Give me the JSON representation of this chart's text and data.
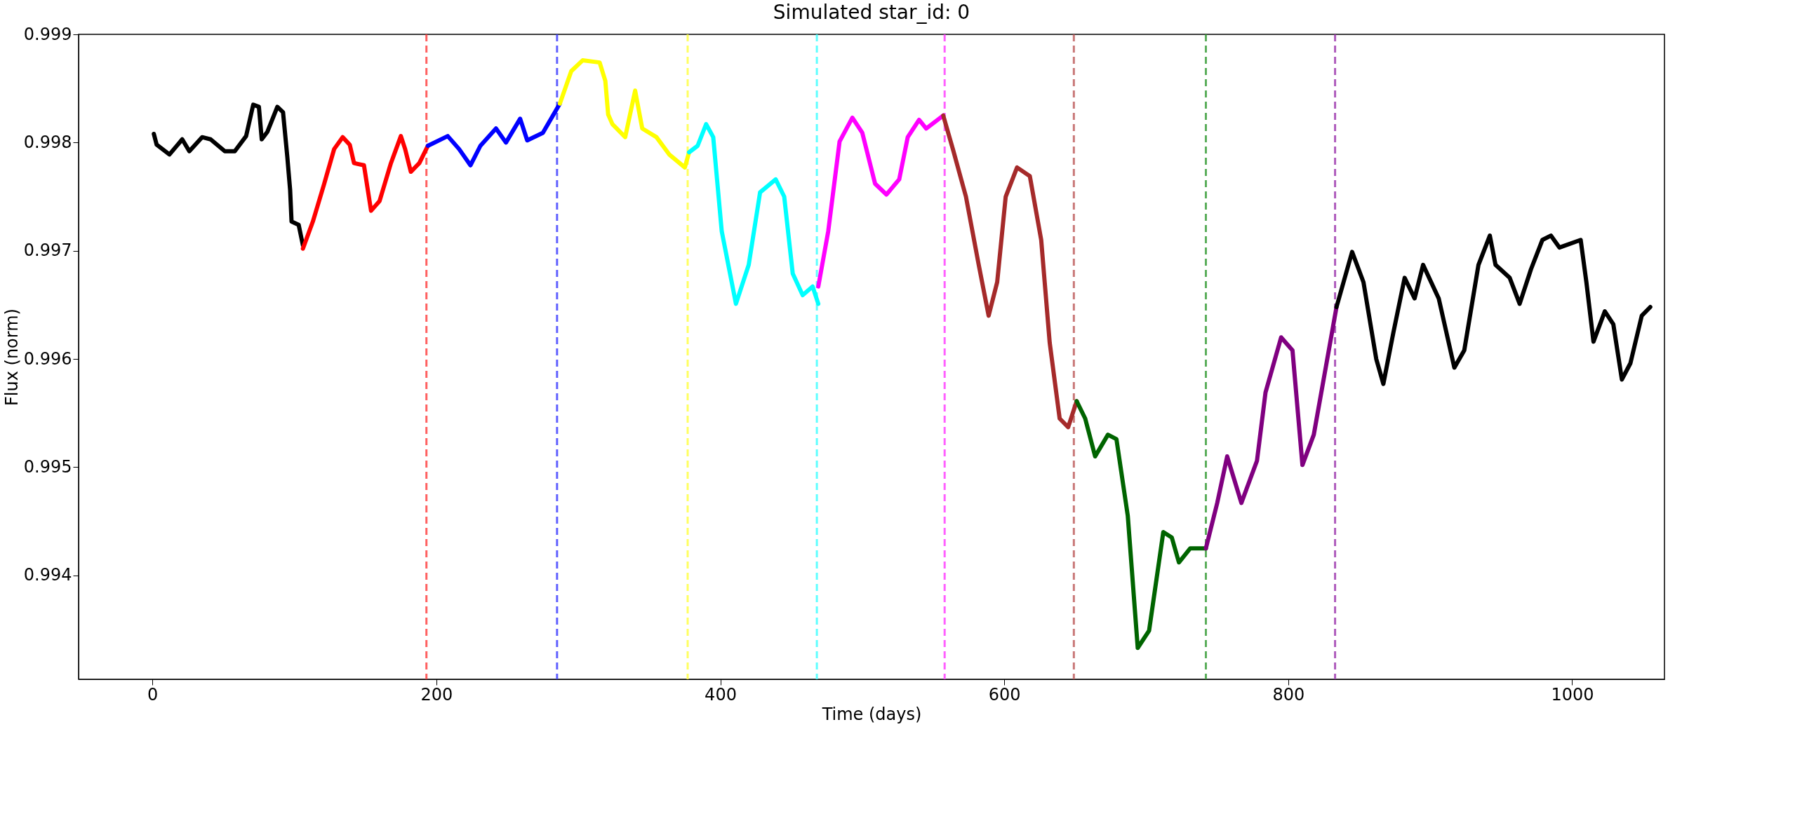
{
  "chart_data": {
    "type": "line",
    "title": "Simulated star_id: 0",
    "xlabel": "Time (days)",
    "ylabel": "Flux (norm)",
    "xlim": [
      -52,
      1065
    ],
    "ylim": [
      0.99304,
      0.999
    ],
    "xticks": [
      0,
      200,
      400,
      600,
      800,
      1000
    ],
    "yticks": [
      0.994,
      0.995,
      0.996,
      0.997,
      0.998,
      0.999
    ],
    "grid": false,
    "legend": false,
    "marker": "none",
    "line_style": "solid",
    "series": [
      {
        "color": "#000000",
        "x": [
          1,
          3,
          12,
          21,
          26,
          35,
          41,
          51,
          58,
          66,
          71,
          75,
          77,
          81,
          88,
          92,
          95,
          97,
          98,
          103,
          106
        ],
        "values": [
          0.99808,
          0.99798,
          0.99789,
          0.99803,
          0.99792,
          0.99805,
          0.99803,
          0.99792,
          0.99792,
          0.99806,
          0.99835,
          0.99833,
          0.99803,
          0.9981,
          0.99833,
          0.99828,
          0.99787,
          0.99756,
          0.99727,
          0.99724,
          0.99705
        ]
      },
      {
        "color": "#ff0000",
        "x": [
          106,
          113,
          121,
          128,
          134,
          139,
          142,
          149,
          154,
          160,
          168,
          175,
          178,
          182,
          188,
          194
        ],
        "values": [
          0.99702,
          0.99727,
          0.99762,
          0.99794,
          0.99805,
          0.99798,
          0.99781,
          0.99779,
          0.99737,
          0.99746,
          0.99781,
          0.99806,
          0.99794,
          0.99773,
          0.99781,
          0.99797
        ]
      },
      {
        "color": "#0000ff",
        "x": [
          194,
          208,
          216,
          224,
          231,
          242,
          249,
          259,
          264,
          275,
          287
        ],
        "values": [
          0.99797,
          0.99806,
          0.99794,
          0.99779,
          0.99797,
          0.99813,
          0.998,
          0.99822,
          0.99802,
          0.99809,
          0.99836
        ]
      },
      {
        "color": "#ffff00",
        "x": [
          287,
          295,
          303,
          315,
          319,
          321,
          324,
          333,
          340,
          345,
          355,
          364,
          375,
          378
        ],
        "values": [
          0.99836,
          0.99866,
          0.99876,
          0.99874,
          0.99857,
          0.99826,
          0.99817,
          0.99805,
          0.99848,
          0.99813,
          0.99805,
          0.99789,
          0.99777,
          0.99791
        ]
      },
      {
        "color": "#00ffff",
        "x": [
          378,
          384,
          390,
          395,
          401,
          411,
          420,
          428,
          439,
          445,
          451,
          458,
          465,
          469
        ],
        "values": [
          0.99791,
          0.99797,
          0.99817,
          0.99805,
          0.99718,
          0.99651,
          0.99687,
          0.99754,
          0.99766,
          0.9975,
          0.99679,
          0.99659,
          0.99667,
          0.99651
        ]
      },
      {
        "color": "#ff00ff",
        "x": [
          469,
          476,
          484,
          493,
          500,
          509,
          517,
          526,
          532,
          540,
          545,
          557
        ],
        "values": [
          0.99667,
          0.99718,
          0.99801,
          0.99823,
          0.99809,
          0.99762,
          0.99752,
          0.99766,
          0.99805,
          0.99821,
          0.99813,
          0.99825
        ]
      },
      {
        "color": "#a52a2a",
        "x": [
          557,
          564,
          573,
          582,
          589,
          595,
          601,
          609,
          618,
          626,
          632,
          639,
          645,
          651
        ],
        "values": [
          0.99825,
          0.99793,
          0.9975,
          0.99687,
          0.9964,
          0.99671,
          0.9975,
          0.99777,
          0.99769,
          0.9971,
          0.99615,
          0.99545,
          0.99537,
          0.99561
        ]
      },
      {
        "color": "#006400",
        "x": [
          651,
          657,
          664,
          673,
          679,
          687,
          694,
          702,
          712,
          718,
          723,
          731,
          742
        ],
        "values": [
          0.99561,
          0.99545,
          0.9951,
          0.9953,
          0.99526,
          0.99455,
          0.99333,
          0.99349,
          0.9944,
          0.99435,
          0.99412,
          0.99425,
          0.99425
        ]
      },
      {
        "color": "#800080",
        "x": [
          742,
          750,
          757,
          767,
          778,
          784,
          795,
          803,
          810,
          818,
          834
        ],
        "values": [
          0.99425,
          0.99467,
          0.9951,
          0.99467,
          0.99506,
          0.99569,
          0.9962,
          0.99608,
          0.99502,
          0.9953,
          0.99648
        ]
      },
      {
        "color": "#000000",
        "x": [
          834,
          845,
          853,
          862,
          867,
          874,
          882,
          889,
          895,
          906,
          917,
          924,
          934,
          942,
          946,
          956,
          963,
          971,
          979,
          985,
          991,
          1006,
          1010,
          1015,
          1023,
          1029,
          1035,
          1041,
          1049,
          1055
        ],
        "values": [
          0.99648,
          0.99699,
          0.99671,
          0.996,
          0.99577,
          0.99624,
          0.99675,
          0.99656,
          0.99687,
          0.99656,
          0.99592,
          0.99608,
          0.99687,
          0.99714,
          0.99687,
          0.99675,
          0.99651,
          0.99683,
          0.9971,
          0.99714,
          0.99703,
          0.9971,
          0.99671,
          0.99616,
          0.99644,
          0.99632,
          0.99581,
          0.99596,
          0.9964,
          0.99648
        ]
      }
    ],
    "ref_lines": [
      {
        "axis": "x",
        "value": 193,
        "label": null,
        "color": "#ff4444",
        "line_style": "dashed"
      },
      {
        "axis": "x",
        "value": 285,
        "label": null,
        "color": "#4444ff",
        "line_style": "dashed"
      },
      {
        "axis": "x",
        "value": 377,
        "label": null,
        "color": "#ffff44",
        "line_style": "dashed"
      },
      {
        "axis": "x",
        "value": 468,
        "label": null,
        "color": "#44ffff",
        "line_style": "dashed"
      },
      {
        "axis": "x",
        "value": 558,
        "label": null,
        "color": "#ff44ff",
        "line_style": "dashed"
      },
      {
        "axis": "x",
        "value": 649,
        "label": null,
        "color": "#c06060",
        "line_style": "dashed"
      },
      {
        "axis": "x",
        "value": 742,
        "label": null,
        "color": "#40a040",
        "line_style": "dashed"
      },
      {
        "axis": "x",
        "value": 833,
        "label": null,
        "color": "#a040b0",
        "line_style": "dashed"
      }
    ]
  }
}
